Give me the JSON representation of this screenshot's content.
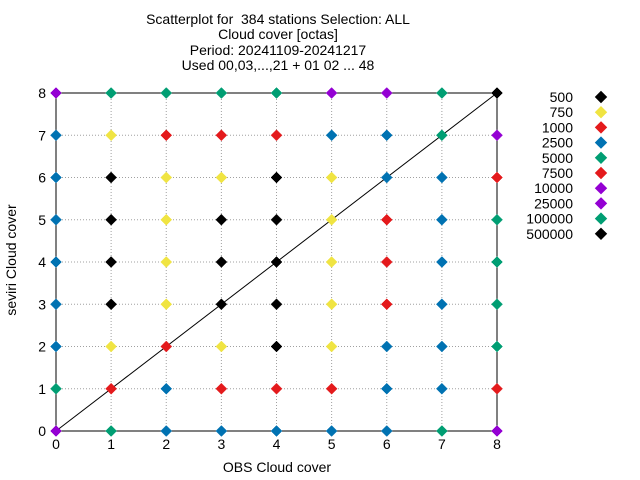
{
  "title_lines": [
    "Scatterplot for  384 stations Selection: ALL",
    "Cloud cover [octas]",
    "Period: 20241109-20241217",
    "Used 00,03,...,21 + 01 02 ... 48"
  ],
  "chart_data": {
    "type": "scatter",
    "xlabel": "OBS Cloud cover",
    "ylabel": "seviri Cloud cover",
    "xlim": [
      0,
      8
    ],
    "ylim": [
      0,
      8
    ],
    "xticks": [
      "0",
      "1",
      "2",
      "3",
      "4",
      "5",
      "6",
      "7",
      "8"
    ],
    "yticks": [
      "0",
      "1",
      "2",
      "3",
      "4",
      "5",
      "6",
      "7",
      "8"
    ],
    "grid": true,
    "diagonal_line": true,
    "legend_position": "right",
    "legend": [
      {
        "label": "500",
        "color": "#000000"
      },
      {
        "label": "750",
        "color": "#f0e442"
      },
      {
        "label": "1000",
        "color": "#e41a1c"
      },
      {
        "label": "2500",
        "color": "#0072b2"
      },
      {
        "label": "5000",
        "color": "#009e73"
      },
      {
        "label": "7500",
        "color": "#e41a1c"
      },
      {
        "label": "10000",
        "color": "#9400d3"
      },
      {
        "label": "25000",
        "color": "#9400d3"
      },
      {
        "label": "100000",
        "color": "#009e73"
      },
      {
        "label": "500000",
        "color": "#000000"
      }
    ],
    "points": [
      {
        "x": 0,
        "y": 0,
        "color": "#9400d3"
      },
      {
        "x": 1,
        "y": 0,
        "color": "#009e73"
      },
      {
        "x": 2,
        "y": 0,
        "color": "#0072b2"
      },
      {
        "x": 3,
        "y": 0,
        "color": "#0072b2"
      },
      {
        "x": 4,
        "y": 0,
        "color": "#0072b2"
      },
      {
        "x": 5,
        "y": 0,
        "color": "#0072b2"
      },
      {
        "x": 6,
        "y": 0,
        "color": "#0072b2"
      },
      {
        "x": 7,
        "y": 0,
        "color": "#009e73"
      },
      {
        "x": 8,
        "y": 0,
        "color": "#9400d3"
      },
      {
        "x": 0,
        "y": 1,
        "color": "#009e73"
      },
      {
        "x": 1,
        "y": 1,
        "color": "#e41a1c"
      },
      {
        "x": 2,
        "y": 1,
        "color": "#0072b2"
      },
      {
        "x": 3,
        "y": 1,
        "color": "#e41a1c"
      },
      {
        "x": 4,
        "y": 1,
        "color": "#e41a1c"
      },
      {
        "x": 5,
        "y": 1,
        "color": "#e41a1c"
      },
      {
        "x": 6,
        "y": 1,
        "color": "#0072b2"
      },
      {
        "x": 7,
        "y": 1,
        "color": "#0072b2"
      },
      {
        "x": 8,
        "y": 1,
        "color": "#e41a1c"
      },
      {
        "x": 0,
        "y": 2,
        "color": "#0072b2"
      },
      {
        "x": 1,
        "y": 2,
        "color": "#f0e442"
      },
      {
        "x": 2,
        "y": 2,
        "color": "#e41a1c"
      },
      {
        "x": 3,
        "y": 2,
        "color": "#f0e442"
      },
      {
        "x": 4,
        "y": 2,
        "color": "#000000"
      },
      {
        "x": 5,
        "y": 2,
        "color": "#f0e442"
      },
      {
        "x": 6,
        "y": 2,
        "color": "#0072b2"
      },
      {
        "x": 7,
        "y": 2,
        "color": "#0072b2"
      },
      {
        "x": 8,
        "y": 2,
        "color": "#009e73"
      },
      {
        "x": 0,
        "y": 3,
        "color": "#0072b2"
      },
      {
        "x": 1,
        "y": 3,
        "color": "#000000"
      },
      {
        "x": 2,
        "y": 3,
        "color": "#f0e442"
      },
      {
        "x": 3,
        "y": 3,
        "color": "#000000"
      },
      {
        "x": 4,
        "y": 3,
        "color": "#000000"
      },
      {
        "x": 5,
        "y": 3,
        "color": "#f0e442"
      },
      {
        "x": 6,
        "y": 3,
        "color": "#e41a1c"
      },
      {
        "x": 7,
        "y": 3,
        "color": "#0072b2"
      },
      {
        "x": 8,
        "y": 3,
        "color": "#009e73"
      },
      {
        "x": 0,
        "y": 4,
        "color": "#0072b2"
      },
      {
        "x": 1,
        "y": 4,
        "color": "#000000"
      },
      {
        "x": 2,
        "y": 4,
        "color": "#f0e442"
      },
      {
        "x": 3,
        "y": 4,
        "color": "#000000"
      },
      {
        "x": 4,
        "y": 4,
        "color": "#000000"
      },
      {
        "x": 5,
        "y": 4,
        "color": "#f0e442"
      },
      {
        "x": 6,
        "y": 4,
        "color": "#e41a1c"
      },
      {
        "x": 7,
        "y": 4,
        "color": "#0072b2"
      },
      {
        "x": 8,
        "y": 4,
        "color": "#009e73"
      },
      {
        "x": 0,
        "y": 5,
        "color": "#0072b2"
      },
      {
        "x": 1,
        "y": 5,
        "color": "#000000"
      },
      {
        "x": 2,
        "y": 5,
        "color": "#f0e442"
      },
      {
        "x": 3,
        "y": 5,
        "color": "#000000"
      },
      {
        "x": 4,
        "y": 5,
        "color": "#000000"
      },
      {
        "x": 5,
        "y": 5,
        "color": "#f0e442"
      },
      {
        "x": 6,
        "y": 5,
        "color": "#e41a1c"
      },
      {
        "x": 7,
        "y": 5,
        "color": "#0072b2"
      },
      {
        "x": 8,
        "y": 5,
        "color": "#009e73"
      },
      {
        "x": 0,
        "y": 6,
        "color": "#0072b2"
      },
      {
        "x": 1,
        "y": 6,
        "color": "#000000"
      },
      {
        "x": 2,
        "y": 6,
        "color": "#f0e442"
      },
      {
        "x": 3,
        "y": 6,
        "color": "#f0e442"
      },
      {
        "x": 4,
        "y": 6,
        "color": "#000000"
      },
      {
        "x": 5,
        "y": 6,
        "color": "#f0e442"
      },
      {
        "x": 6,
        "y": 6,
        "color": "#0072b2"
      },
      {
        "x": 7,
        "y": 6,
        "color": "#0072b2"
      },
      {
        "x": 8,
        "y": 6,
        "color": "#e41a1c"
      },
      {
        "x": 0,
        "y": 7,
        "color": "#0072b2"
      },
      {
        "x": 1,
        "y": 7,
        "color": "#f0e442"
      },
      {
        "x": 2,
        "y": 7,
        "color": "#e41a1c"
      },
      {
        "x": 3,
        "y": 7,
        "color": "#e41a1c"
      },
      {
        "x": 4,
        "y": 7,
        "color": "#e41a1c"
      },
      {
        "x": 5,
        "y": 7,
        "color": "#0072b2"
      },
      {
        "x": 6,
        "y": 7,
        "color": "#0072b2"
      },
      {
        "x": 7,
        "y": 7,
        "color": "#009e73"
      },
      {
        "x": 8,
        "y": 7,
        "color": "#9400d3"
      },
      {
        "x": 0,
        "y": 8,
        "color": "#9400d3"
      },
      {
        "x": 1,
        "y": 8,
        "color": "#009e73"
      },
      {
        "x": 2,
        "y": 8,
        "color": "#009e73"
      },
      {
        "x": 3,
        "y": 8,
        "color": "#009e73"
      },
      {
        "x": 4,
        "y": 8,
        "color": "#009e73"
      },
      {
        "x": 5,
        "y": 8,
        "color": "#9400d3"
      },
      {
        "x": 6,
        "y": 8,
        "color": "#9400d3"
      },
      {
        "x": 7,
        "y": 8,
        "color": "#009e73"
      },
      {
        "x": 8,
        "y": 8,
        "color": "#000000"
      }
    ]
  }
}
